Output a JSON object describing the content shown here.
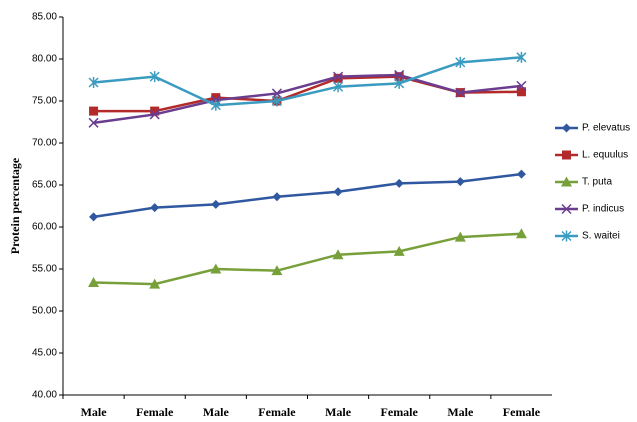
{
  "chart_data": {
    "type": "line",
    "y_label": "Protein percentage",
    "categories": [
      "Male",
      "Female",
      "Male",
      "Female",
      "Male",
      "Female",
      "Male",
      "Female"
    ],
    "ylim": [
      40,
      85
    ],
    "yticks": [
      {
        "value": 40,
        "label": "40.00"
      },
      {
        "value": 45,
        "label": "45.00"
      },
      {
        "value": 50,
        "label": "50.00"
      },
      {
        "value": 55,
        "label": "55.00"
      },
      {
        "value": 60,
        "label": "60.00"
      },
      {
        "value": 65,
        "label": "65.00"
      },
      {
        "value": 70,
        "label": "70.00"
      },
      {
        "value": 75,
        "label": "75.00"
      },
      {
        "value": 80,
        "label": "80.00"
      },
      {
        "value": 85,
        "label": "85.00"
      }
    ],
    "grid": false,
    "legend": "right",
    "series": [
      {
        "name": "P. elevatus",
        "color": "#2f58a0",
        "marker": "diamond",
        "values": [
          61.2,
          62.3,
          62.7,
          63.6,
          64.2,
          65.2,
          65.4,
          66.3
        ]
      },
      {
        "name": "L. equulus",
        "color": "#b22a2a",
        "marker": "square",
        "values": [
          73.8,
          73.8,
          75.4,
          75.0,
          77.7,
          77.9,
          76.0,
          76.1
        ]
      },
      {
        "name": "T. puta",
        "color": "#77a03a",
        "marker": "triangle",
        "values": [
          53.4,
          53.2,
          55.0,
          54.8,
          56.7,
          57.1,
          58.8,
          59.2
        ]
      },
      {
        "name": "P. indicus",
        "color": "#6a3d8f",
        "marker": "x",
        "values": [
          72.4,
          73.4,
          75.1,
          75.9,
          77.9,
          78.1,
          76.0,
          76.8
        ]
      },
      {
        "name": "S. waitei",
        "color": "#3a9bc0",
        "marker": "star",
        "values": [
          77.2,
          77.9,
          74.5,
          75.0,
          76.7,
          77.1,
          79.6,
          80.2
        ]
      }
    ]
  }
}
